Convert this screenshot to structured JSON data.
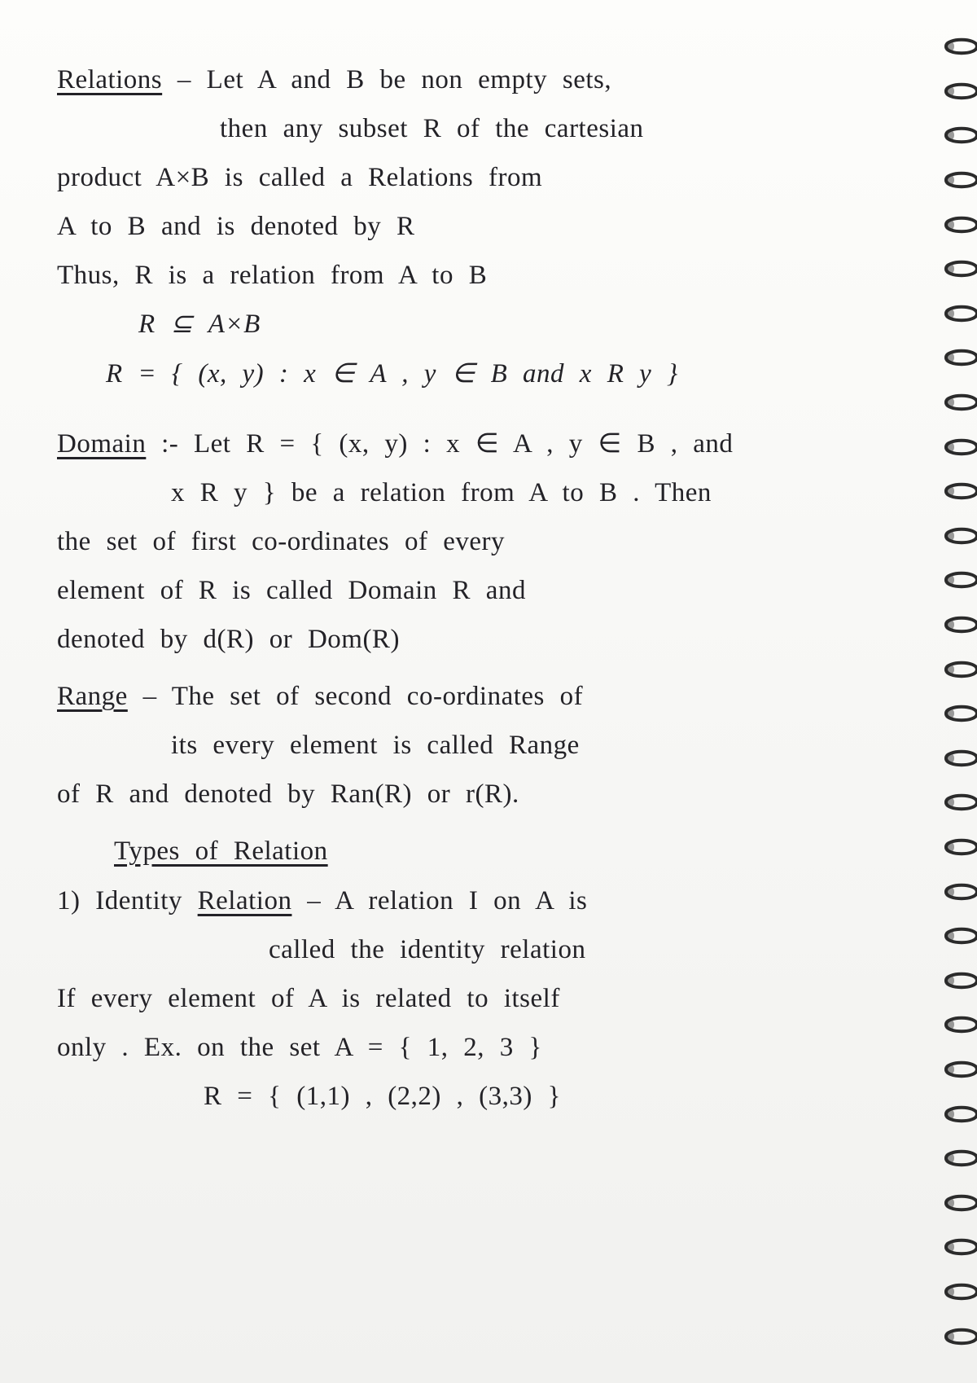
{
  "doc": {
    "text_color": "#232227",
    "paper_color": "#f8f8f6",
    "font_family": "Segoe Script, Comic Sans MS, cursive",
    "font_size_pt": 25,
    "line_height": 1.7
  },
  "binding": {
    "ring_count": 30,
    "ring_color": "#2b2b2b",
    "hole_color": "#5a5a5a"
  },
  "lines": {
    "l1a": "Relations",
    "l1b": " – Let A and B be non empty sets,",
    "l2": "then any subset R of the cartesian",
    "l3": "product A×B is called a Relations from",
    "l4": "A to B and is denoted by R",
    "l5": "Thus, R is a relation from A to B",
    "l6": "R ⊆ A×B",
    "l7": "R = { (x, y) : x ∈ A , y ∈ B  and  x R y }",
    "l8a": "Domain",
    "l8b": " :-  Let  R  =  { (x, y) : x ∈ A ,  y ∈ B ,  and",
    "l9": "x R y }  be a  relation  from  A  to B .  Then",
    "l10": "the  set  of  first  co-ordinates  of  every",
    "l11": "element  of  R  is  called   Domain R   and",
    "l12": "denoted  by  d(R)  or  Dom(R)",
    "l13a": "Range",
    "l13b": "  –  The  set  of  second  co-ordinates  of",
    "l14": "its  every  element  is  called  Range",
    "l15": "of  R  and  denoted  by  Ran(R)  or  r(R).",
    "l16": "Types of  Relation",
    "l17a": "1)  Identity ",
    "l17u": "Relation",
    "l17b": " –   A  relation  I  on  A  is",
    "l18": "called  the  identity  relation",
    "l19": "If  every  element  of  A  is  related  to  itself",
    "l20": "only .   Ex.  on  the  set  A  =  { 1, 2, 3 }",
    "l21": "R  =  { (1,1) ,  (2,2) ,  (3,3) }"
  }
}
